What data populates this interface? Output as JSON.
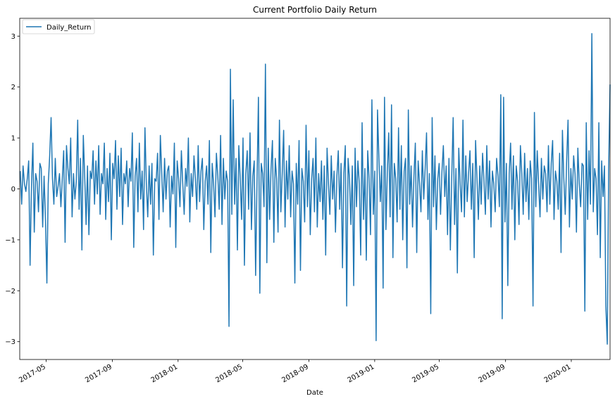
{
  "chart_data": {
    "type": "line",
    "title": "Current Portfolio Daily Return",
    "xlabel": "Date",
    "ylabel": "",
    "ylim": [
      -3.35,
      3.35
    ],
    "xlim": [
      "2017-03-13",
      "2020-03-13"
    ],
    "grid": false,
    "legend": "top-left",
    "x_ticks": [
      "2017-05",
      "2017-09",
      "2018-01",
      "2018-05",
      "2018-09",
      "2019-01",
      "2019-05",
      "2019-09",
      "2020-01"
    ],
    "y_ticks": [
      -3,
      -2,
      -1,
      0,
      1,
      2,
      3
    ],
    "series": [
      {
        "name": "Daily_Return",
        "color": "#1f77b4",
        "start": "2017-03-14",
        "end": "2020-03-13",
        "values": [
          0.35,
          -0.3,
          0.45,
          0.1,
          -0.05,
          0.2,
          0.55,
          -1.5,
          0.05,
          0.9,
          -0.85,
          0.3,
          0.15,
          -0.45,
          0.5,
          0.4,
          -0.75,
          0.25,
          -0.6,
          -1.85,
          0.1,
          0.65,
          1.4,
          0.2,
          -0.3,
          0.6,
          -0.15,
          0.05,
          0.3,
          -0.35,
          0.2,
          0.75,
          -1.05,
          0.85,
          0.4,
          0.1,
          1.0,
          -0.55,
          0.3,
          -0.2,
          0.15,
          1.35,
          -0.4,
          0.6,
          -1.2,
          1.05,
          0.25,
          -0.7,
          0.45,
          -0.9,
          0.35,
          0.2,
          0.75,
          -0.3,
          0.55,
          -0.1,
          0.85,
          -0.5,
          0.3,
          0.1,
          0.9,
          -0.6,
          0.4,
          -0.25,
          0.7,
          -1.0,
          0.5,
          0.2,
          0.95,
          -0.4,
          0.65,
          -0.15,
          0.8,
          -0.7,
          0.3,
          0.1,
          0.55,
          -0.35,
          0.4,
          0.15,
          1.1,
          -1.15,
          0.25,
          0.6,
          -0.45,
          0.9,
          -0.2,
          0.35,
          -0.8,
          1.2,
          0.1,
          -0.55,
          0.45,
          -0.3,
          0.5,
          -1.3,
          0.2,
          0.15,
          0.7,
          -0.6,
          1.05,
          0.3,
          -0.45,
          0.6,
          -0.2,
          0.35,
          0.45,
          -0.75,
          0.25,
          -0.1,
          0.9,
          -1.15,
          0.55,
          0.2,
          -0.35,
          0.75,
          0.1,
          -0.5,
          0.4,
          0.05,
          1.0,
          -0.65,
          0.3,
          -0.15,
          0.65,
          0.2,
          -0.4,
          0.85,
          -0.25,
          0.35,
          0.6,
          -0.8,
          0.15,
          0.45,
          -0.3,
          0.95,
          -1.25,
          0.5,
          0.1,
          -0.55,
          0.7,
          0.25,
          -0.4,
          1.05,
          -0.7,
          0.6,
          -0.2,
          0.35,
          0.15,
          -2.7,
          2.35,
          -0.5,
          1.75,
          -0.3,
          0.6,
          -1.2,
          0.85,
          0.2,
          -0.6,
          1.0,
          -1.5,
          0.3,
          0.75,
          -0.4,
          1.1,
          -0.8,
          0.25,
          0.55,
          -1.7,
          0.15,
          1.8,
          -2.05,
          0.5,
          0.3,
          -0.35,
          2.45,
          -1.45,
          0.8,
          -0.6,
          0.4,
          0.95,
          -1.05,
          0.6,
          0.2,
          -0.85,
          1.35,
          -0.45,
          0.3,
          1.15,
          -0.75,
          0.55,
          -0.2,
          0.85,
          -0.55,
          0.35,
          0.1,
          -1.85,
          0.5,
          -0.3,
          0.95,
          -1.6,
          0.4,
          0.15,
          -0.65,
          1.25,
          -0.35,
          0.75,
          -0.9,
          0.2,
          0.6,
          -0.45,
          1.0,
          -0.75,
          0.3,
          -0.25,
          0.55,
          -0.6,
          0.45,
          -1.3,
          0.8,
          0.1,
          -0.5,
          0.65,
          -0.2,
          0.35,
          -0.85,
          0.25,
          0.75,
          -0.4,
          0.5,
          -1.55,
          0.3,
          0.85,
          -2.3,
          0.6,
          0.2,
          -0.7,
          0.45,
          -1.9,
          0.8,
          -0.35,
          0.55,
          0.1,
          -1.3,
          1.3,
          -0.6,
          0.4,
          -1.4,
          0.75,
          0.2,
          -0.9,
          1.75,
          -0.5,
          0.35,
          -2.98,
          1.55,
          0.6,
          -0.25,
          0.45,
          -1.95,
          1.8,
          -0.8,
          0.3,
          1.1,
          -0.55,
          1.65,
          -1.35,
          0.5,
          0.2,
          -0.65,
          1.2,
          -0.4,
          0.85,
          -1.0,
          0.35,
          0.6,
          -1.55,
          1.55,
          -0.3,
          0.45,
          -0.75,
          0.25,
          0.9,
          -1.25,
          0.55,
          0.1,
          -0.45,
          0.75,
          -0.2,
          0.4,
          1.1,
          -0.6,
          0.3,
          -2.45,
          1.4,
          -0.35,
          0.65,
          -0.8,
          0.2,
          0.5,
          -0.5,
          0.35,
          0.85,
          -0.15,
          0.45,
          -0.9,
          0.6,
          -1.2,
          0.25,
          1.4,
          -0.7,
          0.4,
          -1.65,
          0.8,
          0.1,
          -0.45,
          1.35,
          -0.55,
          0.65,
          -0.25,
          0.3,
          0.75,
          -0.4,
          0.5,
          -1.35,
          0.95,
          0.2,
          -0.6,
          0.45,
          -0.3,
          0.7,
          0.15,
          -0.5,
          0.85,
          -0.2,
          0.55,
          -0.75,
          0.35,
          0.1,
          -0.45,
          0.6,
          0.25,
          -0.35,
          1.85,
          -2.55,
          1.8,
          -0.65,
          0.5,
          -1.9,
          0.3,
          0.9,
          -0.4,
          0.65,
          -1.0,
          0.45,
          0.15,
          -0.7,
          0.85,
          0.3,
          -0.5,
          0.7,
          -0.25,
          0.4,
          -0.6,
          0.55,
          0.2,
          -2.3,
          1.5,
          -0.35,
          0.75,
          0.1,
          -0.55,
          0.6,
          -0.2,
          0.45,
          0.3,
          -0.45,
          0.85,
          -0.3,
          0.5,
          0.95,
          -0.6,
          0.35,
          0.15,
          -0.4,
          0.7,
          -1.25,
          1.15,
          0.2,
          -0.5,
          0.55,
          1.35,
          -0.75,
          0.4,
          -0.2,
          0.65,
          0.3,
          -0.85,
          0.8,
          0.1,
          -0.35,
          0.5,
          0.45,
          -2.4,
          1.3,
          -0.6,
          0.75,
          -0.3,
          3.05,
          -0.45,
          0.4,
          0.2,
          -0.9,
          1.3,
          -1.35,
          0.55,
          -0.15,
          0.45,
          -2.3,
          -3.05,
          0.4,
          2.05
        ]
      }
    ]
  }
}
